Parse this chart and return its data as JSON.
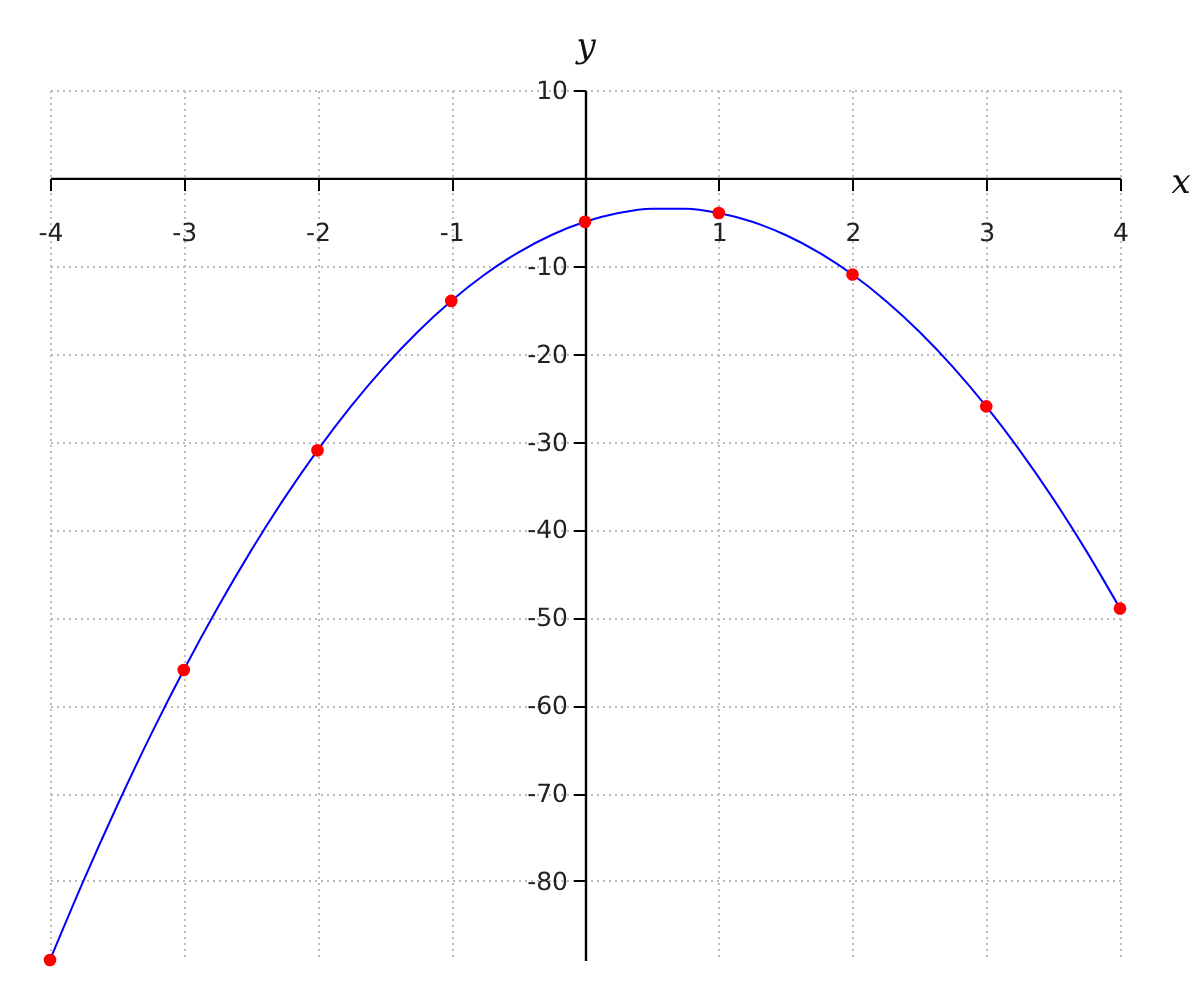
{
  "chart_data": {
    "type": "line",
    "xlabel": "x",
    "ylabel": "y",
    "xlim": [
      -4,
      4
    ],
    "ylim": [
      -89,
      10
    ],
    "xticks": [
      -4,
      -3,
      -2,
      -1,
      1,
      2,
      3,
      4
    ],
    "yticks": [
      10,
      -10,
      -20,
      -30,
      -40,
      -50,
      -60,
      -70,
      -80
    ],
    "grid": true,
    "series": [
      {
        "type": "line",
        "color": "#0000ff",
        "x": [
          -4,
          -3.75,
          -3.5,
          -3.25,
          -3,
          -2.75,
          -2.5,
          -2.25,
          -2,
          -1.75,
          -1.5,
          -1.25,
          -1,
          -0.75,
          -0.5,
          -0.25,
          0,
          0.25,
          0.5,
          0.75,
          1,
          1.25,
          1.5,
          1.75,
          2,
          2.25,
          2.5,
          2.75,
          3,
          3.25,
          3.5,
          3.75,
          4
        ],
        "values": [
          -89,
          -80,
          -71.5,
          -63.5,
          -56,
          -49,
          -42.5,
          -36.5,
          -31,
          -26,
          -21.5,
          -17.5,
          -14,
          -11,
          -8.5,
          -6.5,
          -5,
          -4,
          -3.5,
          -3.5,
          -4,
          -5,
          -6.5,
          -8.5,
          -11,
          -14,
          -17.5,
          -21.5,
          -26,
          -31,
          -36.5,
          -42.5,
          -49
        ]
      },
      {
        "type": "scatter",
        "color": "#ff0000",
        "marker": "circle",
        "x": [
          -4,
          -3,
          -2,
          -1,
          0,
          1,
          2,
          3,
          4
        ],
        "values": [
          -89,
          -56,
          -31,
          -14,
          -5,
          -4,
          -11,
          -26,
          -49
        ]
      }
    ]
  }
}
